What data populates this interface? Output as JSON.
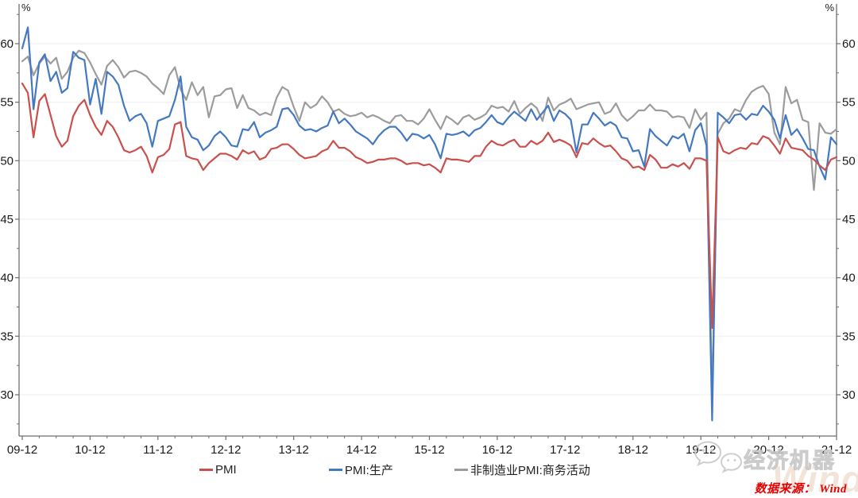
{
  "chart_data": {
    "type": "line",
    "title": "",
    "unit_label": "%",
    "xlabel": "",
    "ylabel": "",
    "x_tick_labels": [
      "09-12",
      "10-12",
      "11-12",
      "12-12",
      "13-12",
      "14-12",
      "15-12",
      "16-12",
      "17-12",
      "18-12",
      "19-12",
      "20-12",
      "21-12"
    ],
    "x_frequency": "monthly",
    "x_months_per_major_tick": 12,
    "x_minor_tick_every_months": 3,
    "n_points": 145,
    "x_range": [
      "2009-12",
      "2021-12"
    ],
    "ylim": [
      26.5,
      62.7
    ],
    "yticks_major": [
      30,
      35,
      40,
      45,
      50,
      55,
      60
    ],
    "ytick_minor_step": 2.5,
    "grid": "horizontal-major-only",
    "dual_axis": true,
    "legend_position": "bottom",
    "axis_color": "#6e6e6e",
    "grid_color": "#ededed",
    "series": [
      {
        "name": "PMI",
        "color": "#C9504D",
        "values": [
          56.6,
          55.8,
          52.0,
          55.1,
          55.7,
          53.9,
          52.1,
          51.2,
          51.7,
          53.8,
          54.7,
          55.2,
          53.9,
          52.9,
          52.2,
          53.4,
          52.9,
          52.0,
          50.9,
          50.7,
          50.9,
          51.2,
          50.4,
          49.0,
          50.3,
          50.5,
          51.0,
          53.1,
          53.3,
          50.4,
          50.2,
          50.1,
          49.2,
          49.8,
          50.2,
          50.6,
          50.6,
          50.4,
          50.1,
          50.9,
          50.6,
          50.8,
          50.1,
          50.3,
          51.0,
          51.1,
          51.4,
          51.4,
          51.0,
          50.5,
          50.2,
          50.3,
          50.4,
          50.8,
          51.0,
          51.7,
          51.1,
          51.1,
          50.8,
          50.3,
          50.1,
          49.8,
          49.9,
          50.1,
          50.1,
          50.2,
          50.2,
          50.0,
          49.7,
          49.8,
          49.8,
          49.6,
          49.7,
          49.4,
          49.0,
          50.2,
          50.1,
          50.1,
          50.0,
          49.9,
          50.4,
          50.4,
          51.2,
          51.7,
          51.4,
          51.3,
          51.6,
          51.8,
          51.2,
          51.2,
          51.7,
          51.4,
          51.7,
          52.4,
          51.6,
          51.8,
          51.6,
          51.3,
          50.3,
          51.5,
          51.4,
          51.9,
          51.5,
          51.2,
          51.3,
          50.8,
          50.2,
          50.0,
          49.4,
          49.5,
          49.2,
          50.5,
          50.1,
          49.4,
          49.4,
          49.7,
          49.5,
          49.8,
          49.3,
          50.2,
          50.2,
          50.0,
          35.7,
          52.0,
          50.8,
          50.6,
          50.9,
          51.1,
          51.0,
          51.5,
          51.4,
          52.1,
          51.9,
          51.3,
          50.6,
          51.9,
          51.1,
          51.0,
          50.9,
          50.4,
          50.1,
          49.6,
          49.2,
          50.1,
          50.3
        ]
      },
      {
        "name": "PMI:生产",
        "color": "#4479C2",
        "values": [
          59.6,
          61.4,
          54.4,
          58.4,
          59.1,
          56.8,
          57.6,
          55.8,
          56.2,
          59.3,
          58.8,
          58.6,
          54.8,
          57.0,
          54.0,
          57.6,
          57.2,
          56.5,
          54.7,
          53.4,
          53.8,
          54.0,
          53.2,
          51.2,
          53.4,
          53.6,
          53.8,
          55.2,
          57.2,
          52.9,
          52.0,
          51.8,
          50.9,
          51.3,
          52.1,
          52.5,
          52.0,
          51.3,
          51.2,
          52.7,
          52.6,
          53.3,
          52.0,
          52.4,
          52.6,
          52.9,
          54.4,
          54.5,
          53.9,
          53.0,
          52.6,
          52.7,
          52.5,
          52.8,
          53.0,
          54.2,
          53.2,
          53.6,
          53.1,
          52.5,
          52.2,
          51.9,
          51.4,
          52.1,
          52.6,
          52.9,
          52.9,
          52.4,
          51.7,
          52.3,
          52.2,
          51.9,
          52.2,
          51.4,
          50.2,
          52.3,
          52.2,
          52.3,
          52.5,
          52.1,
          52.6,
          52.8,
          53.3,
          53.9,
          53.3,
          53.1,
          53.7,
          54.2,
          53.8,
          53.4,
          54.4,
          53.5,
          54.1,
          54.7,
          53.4,
          54.3,
          54.0,
          53.5,
          50.7,
          53.1,
          53.1,
          54.1,
          53.6,
          53.0,
          53.3,
          53.0,
          52.0,
          51.9,
          50.8,
          50.9,
          49.5,
          52.7,
          52.1,
          51.7,
          51.3,
          52.1,
          51.9,
          52.3,
          50.8,
          52.6,
          53.2,
          51.3,
          27.8,
          54.1,
          53.7,
          53.2,
          53.9,
          54.0,
          53.5,
          54.0,
          53.9,
          54.7,
          54.2,
          53.5,
          51.9,
          53.9,
          52.2,
          52.7,
          51.9,
          51.0,
          50.9,
          49.5,
          48.4,
          52.0,
          51.4
        ]
      },
      {
        "name": "非制造业PMI:商务活动",
        "color": "#9C9C9C",
        "values": [
          58.5,
          58.9,
          57.3,
          58.3,
          58.9,
          58.3,
          58.8,
          57.0,
          57.6,
          58.8,
          59.4,
          59.2,
          58.4,
          57.4,
          56.5,
          58.1,
          58.6,
          58.0,
          57.1,
          57.6,
          57.7,
          57.5,
          57.2,
          56.6,
          56.2,
          55.7,
          57.3,
          58.0,
          56.1,
          55.2,
          56.7,
          55.6,
          56.3,
          53.7,
          55.5,
          55.6,
          56.1,
          56.2,
          54.5,
          55.6,
          54.5,
          54.3,
          53.9,
          54.1,
          53.9,
          55.4,
          56.3,
          56.0,
          54.6,
          53.4,
          55.0,
          54.5,
          54.8,
          55.5,
          55.0,
          54.2,
          54.4,
          54.0,
          53.8,
          53.9,
          54.1,
          53.7,
          53.9,
          53.7,
          53.4,
          53.2,
          53.8,
          53.9,
          53.4,
          53.4,
          53.1,
          53.6,
          54.4,
          53.5,
          52.7,
          53.8,
          53.5,
          53.1,
          53.7,
          53.9,
          53.5,
          53.7,
          54.0,
          54.7,
          54.5,
          54.6,
          54.2,
          55.1,
          54.0,
          54.5,
          54.9,
          54.5,
          53.4,
          55.4,
          54.3,
          54.8,
          55.0,
          55.3,
          54.4,
          54.6,
          54.8,
          54.9,
          55.0,
          54.0,
          54.2,
          54.9,
          53.9,
          53.4,
          53.8,
          54.3,
          54.3,
          54.8,
          54.3,
          54.3,
          54.2,
          53.7,
          53.8,
          53.7,
          52.8,
          54.4,
          53.5,
          54.1,
          29.6,
          52.3,
          53.2,
          53.6,
          54.4,
          54.2,
          55.2,
          55.9,
          56.2,
          56.4,
          55.7,
          52.4,
          51.4,
          56.3,
          54.9,
          55.2,
          53.5,
          53.3,
          47.5,
          53.2,
          52.4,
          52.3,
          52.7
        ]
      }
    ]
  },
  "footer": {
    "source": "数据来源： Wind"
  },
  "watermark": {
    "brand": "经济机器",
    "wind": "Wind"
  }
}
